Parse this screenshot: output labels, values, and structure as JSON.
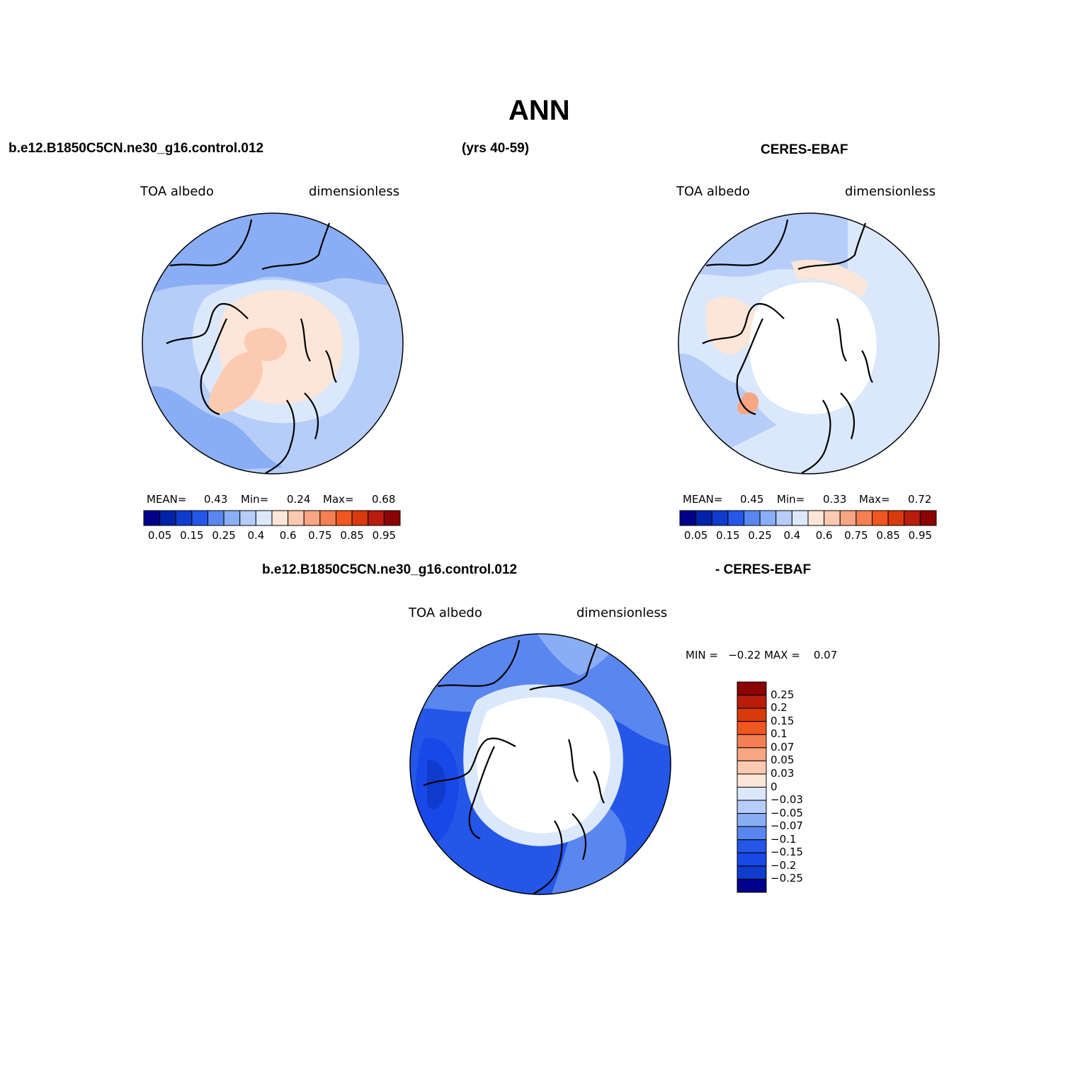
{
  "title": "ANN",
  "header": {
    "case_name": "b.e12.B1850C5CN.ne30_g16.control.012",
    "years": "(yrs 40-59)",
    "obs_name": "CERES-EBAF"
  },
  "panels": [
    {
      "variable": "TOA albedo",
      "units": "dimensionless",
      "stats": {
        "mean_label": "MEAN=",
        "mean": "0.43",
        "min_label": "Min=",
        "min": "0.24",
        "max_label": "Max=",
        "max": "0.68"
      }
    },
    {
      "variable": "TOA albedo",
      "units": "dimensionless",
      "stats": {
        "mean_label": "MEAN=",
        "mean": "0.45",
        "min_label": "Min=",
        "min": "0.33",
        "max_label": "Max=",
        "max": "0.72"
      }
    }
  ],
  "diff_panel": {
    "header_left": "b.e12.B1850C5CN.ne30_g16.control.012",
    "header_right": "- CERES-EBAF",
    "variable": "TOA albedo",
    "units": "dimensionless",
    "minmax_text": "MIN =   −0.22 MAX =    0.07"
  },
  "colorbar_abs": {
    "colors": [
      "#00008b",
      "#0022aa",
      "#0f3ccc",
      "#2457e8",
      "#5a86ef",
      "#8aaef5",
      "#b6cdf9",
      "#dbe8fb",
      "#fde6d8",
      "#fccab0",
      "#f6a682",
      "#f47f53",
      "#f0561f",
      "#d93a0c",
      "#b81d0c",
      "#8b0303"
    ],
    "tick_labels": [
      "0.05",
      "0.15",
      "0.25",
      "0.4",
      "0.6",
      "0.75",
      "0.85",
      "0.95"
    ]
  },
  "colorbar_diff": {
    "colors": [
      "#8b0303",
      "#b81d0c",
      "#d93a0c",
      "#f0561f",
      "#f47f53",
      "#f6a682",
      "#fccab0",
      "#fde6d8",
      "#dbe8fb",
      "#b6cdf9",
      "#8aaef5",
      "#5a86ef",
      "#2457e8",
      "#1848e8",
      "#0f3ccc",
      "#00008b"
    ],
    "tick_labels": [
      "0.25",
      "0.2",
      "0.15",
      "0.1",
      "0.07",
      "0.05",
      "0.03",
      "0",
      "−0.03",
      "−0.05",
      "−0.07",
      "−0.1",
      "−0.15",
      "−0.2",
      "−0.25"
    ]
  },
  "map_colors": {
    "ocean_model": "#b6cdf9",
    "mid_model": "#8aaef5",
    "ice_model": "#fde6d8",
    "greenland_model": "#fccab0",
    "ocean_obs": "#dbe8fb",
    "pole_obs": "#ffffff",
    "diff_deep": "#1848e8",
    "diff_mid": "#5a86ef",
    "diff_light": "#b6cdf9",
    "coastline": "#000000"
  }
}
